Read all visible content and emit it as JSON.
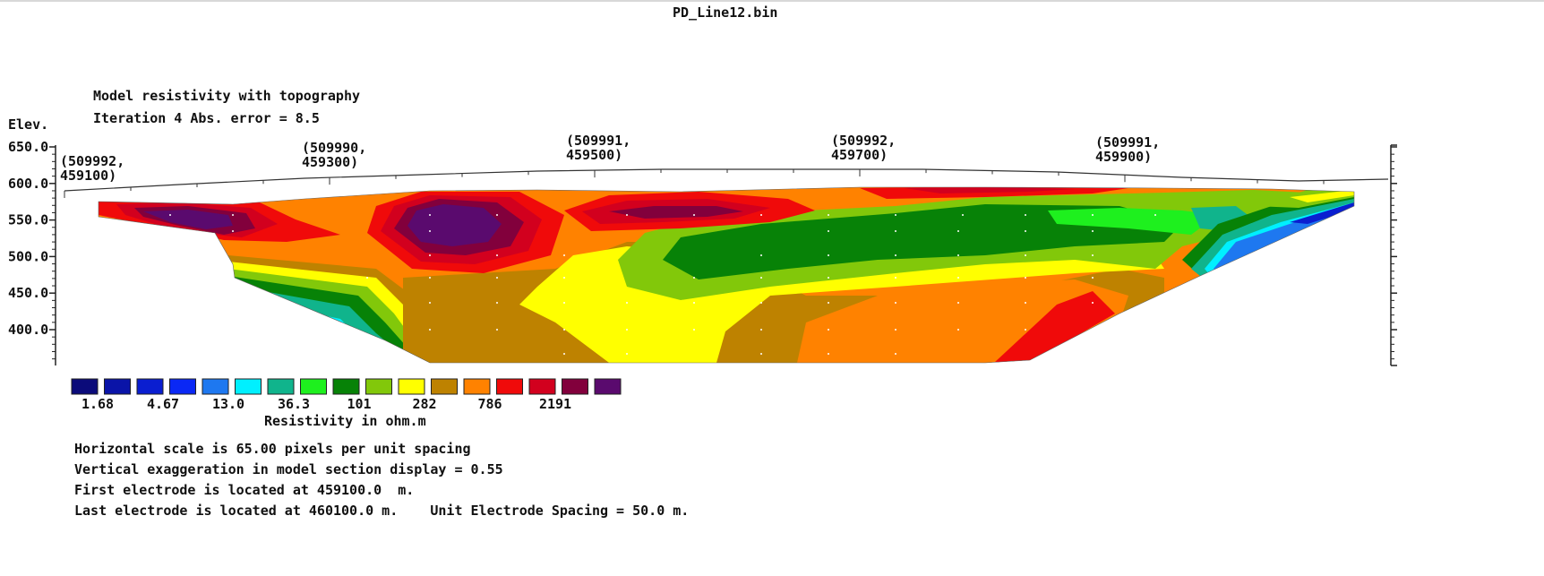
{
  "window_title": "PD_Line12.bin",
  "header": {
    "model_title": "Model resistivity with topography",
    "iteration_line": "Iteration 4 Abs. error = 8.5",
    "elev_label": "Elev."
  },
  "chart_data": {
    "type": "heatmap",
    "title": "Model resistivity with topography",
    "ylabel": "Elev.",
    "y_ticks": [
      "650.0",
      "600.0",
      "550.0",
      "500.0",
      "450.0",
      "400.0"
    ],
    "y_tick_values": [
      650,
      600,
      550,
      500,
      450,
      400
    ],
    "ylim": [
      350,
      660
    ],
    "x_coordinate_labels": [
      {
        "e": "(509992,",
        "n": "459100)"
      },
      {
        "e": "(509990,",
        "n": "459300)"
      },
      {
        "e": "(509991,",
        "n": "459500)"
      },
      {
        "e": "(509992,",
        "n": "459700)"
      },
      {
        "e": "(509991,",
        "n": "459900)"
      }
    ],
    "colorbar": {
      "title": "Resistivity in ohm.m",
      "labels": [
        "1.68",
        "4.67",
        "13.0",
        "36.3",
        "101",
        "282",
        "786",
        "2191"
      ],
      "colors": [
        "#0b0b7a",
        "#0a14a8",
        "#0a1ed0",
        "#0a28f5",
        "#1e78f0",
        "#00f0ff",
        "#10b48c",
        "#1ef01e",
        "#078207",
        "#82c80a",
        "#ffff00",
        "#be8200",
        "#ff8200",
        "#f00a0a",
        "#d2001e",
        "#82003c",
        "#5a0a6e"
      ]
    }
  },
  "footer": {
    "line1": "Horizontal scale is 65.00 pixels per unit spacing",
    "line2": "Vertical exaggeration in model section display = 0.55",
    "line3": "First electrode is located at 459100.0  m.",
    "line4": "Last electrode is located at 460100.0 m.    Unit Electrode Spacing = 50.0 m."
  }
}
